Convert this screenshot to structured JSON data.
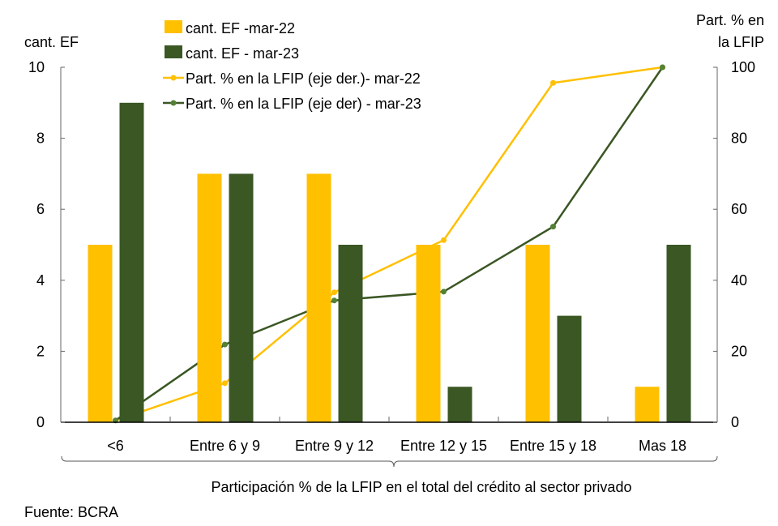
{
  "chart_data": {
    "type": "bar",
    "categories": [
      "<6",
      "Entre 6 y 9",
      "Entre 9 y 12",
      "Entre 12 y 15",
      "Entre 15 y 18",
      "Mas 18"
    ],
    "xlabel": "Participación % de la LFIP en el total del crédito al sector privado",
    "ylabel_left": "cant. EF",
    "ylabel_right_line1": "Part. % en",
    "ylabel_right_line2": "la LFIP",
    "ylim_left": [
      0,
      10
    ],
    "ylim_right": [
      0,
      100
    ],
    "yticks_left": [
      "0",
      "2",
      "4",
      "6",
      "8",
      "10"
    ],
    "yticks_right": [
      "0",
      "20",
      "40",
      "60",
      "80",
      "100"
    ],
    "legend_position": "top",
    "grid": false,
    "series": [
      {
        "name": "cant. EF -mar-22",
        "type": "bar",
        "axis": "left",
        "color": "#FFC000",
        "values": [
          5,
          7,
          7,
          5,
          5,
          1
        ]
      },
      {
        "name": "cant. EF - mar-23",
        "type": "bar",
        "axis": "left",
        "color": "#3A5724",
        "values": [
          9,
          7,
          5,
          1,
          3,
          5
        ]
      },
      {
        "name": "Part. % en la LFIP (eje der.)- mar-22",
        "type": "line",
        "axis": "right",
        "color": "#FFC000",
        "values": [
          0.5,
          11,
          36.6,
          51.3,
          95.6,
          100
        ]
      },
      {
        "name": "Part. % en la LFIP (eje der) - mar-23",
        "type": "line",
        "axis": "right",
        "color": "#3A5724",
        "marker_color": "#538135",
        "values": [
          0.5,
          21.9,
          34.3,
          36.8,
          55.1,
          100
        ]
      }
    ]
  },
  "source": "Fuente: BCRA"
}
